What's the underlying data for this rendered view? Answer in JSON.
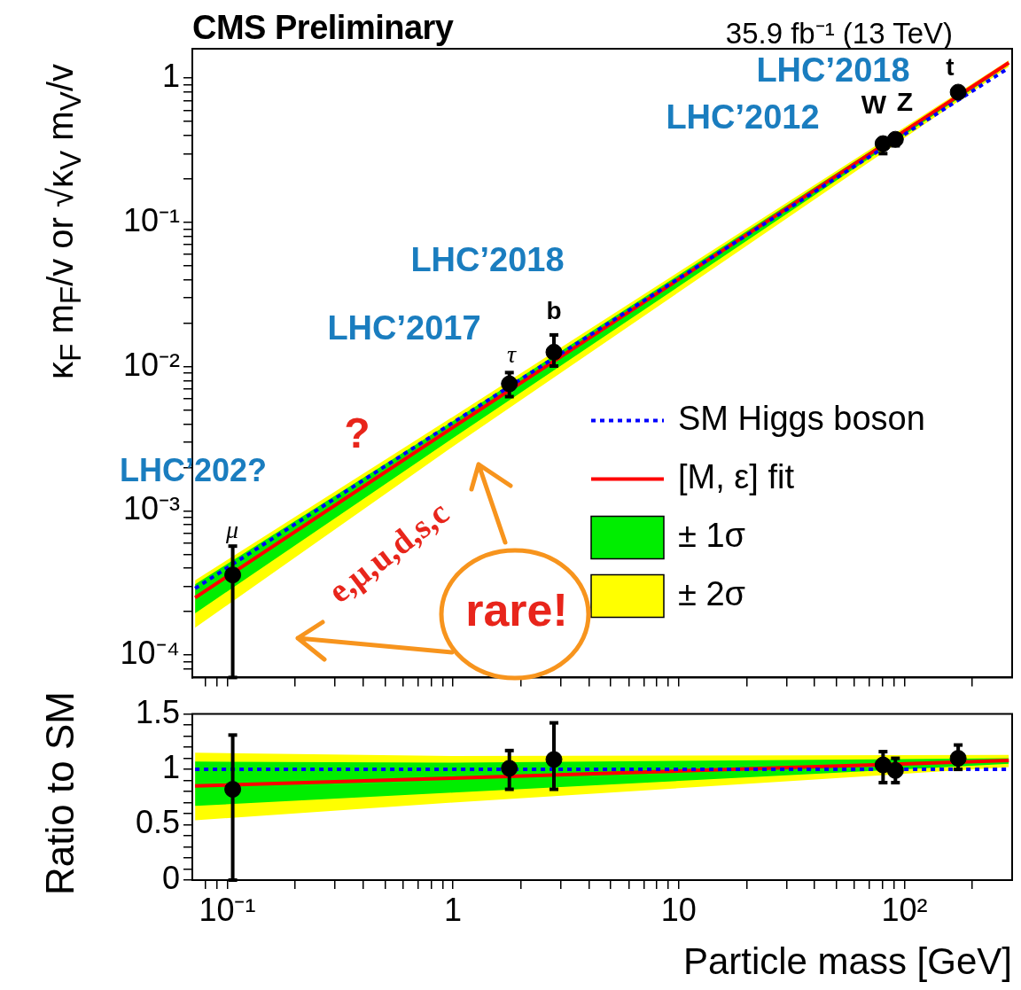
{
  "chart_data": [
    {
      "type": "scatter",
      "title": "CMS Preliminary",
      "subtitle": "35.9 fb⁻¹ (13 TeV)",
      "ylabel": "κ$_{F}$ m$_{F}$/v  or  √κ$_{V}$ m$_{V}$/v",
      "log": "xy",
      "legend": "bottom right",
      "tick_labels": "y",
      "xlim": [
        0.07,
        300
      ],
      "xticks": [
        {
          "value": 0.08,
          "label": null
        },
        {
          "value": 0.09,
          "label": null
        },
        {
          "value": 0.1,
          "label": null
        },
        {
          "value": 0.2,
          "label": null
        },
        {
          "value": 0.3,
          "label": null
        },
        {
          "value": 0.4,
          "label": null
        },
        {
          "value": 0.5,
          "label": null
        },
        {
          "value": 0.6,
          "label": null
        },
        {
          "value": 0.7,
          "label": null
        },
        {
          "value": 0.8,
          "label": null
        },
        {
          "value": 0.9,
          "label": null
        },
        {
          "value": 1,
          "label": null
        },
        {
          "value": 2,
          "label": null
        },
        {
          "value": 3,
          "label": null
        },
        {
          "value": 4,
          "label": null
        },
        {
          "value": 5,
          "label": null
        },
        {
          "value": 6,
          "label": null
        },
        {
          "value": 7,
          "label": null
        },
        {
          "value": 8,
          "label": null
        },
        {
          "value": 9,
          "label": null
        },
        {
          "value": 10,
          "label": null
        },
        {
          "value": 20,
          "label": null
        },
        {
          "value": 30,
          "label": null
        },
        {
          "value": 40,
          "label": null
        },
        {
          "value": 50,
          "label": null
        },
        {
          "value": 60,
          "label": null
        },
        {
          "value": 70,
          "label": null
        },
        {
          "value": 80,
          "label": null
        },
        {
          "value": 90,
          "label": null
        },
        {
          "value": 100,
          "label": null
        },
        {
          "value": 200,
          "label": null
        }
      ],
      "ylim": [
        7e-05,
        1.6
      ],
      "yticks": [
        {
          "value": 8e-05,
          "label": null
        },
        {
          "value": 9e-05,
          "label": null
        },
        {
          "value": 0.0001,
          "label": "10⁻⁴"
        },
        {
          "value": 0.0002,
          "label": null
        },
        {
          "value": 0.0003,
          "label": null
        },
        {
          "value": 0.0004,
          "label": null
        },
        {
          "value": 0.0005,
          "label": null
        },
        {
          "value": 0.0006,
          "label": null
        },
        {
          "value": 0.0007,
          "label": null
        },
        {
          "value": 0.0008,
          "label": null
        },
        {
          "value": 0.0009,
          "label": null
        },
        {
          "value": 0.001,
          "label": "10⁻³"
        },
        {
          "value": 0.002,
          "label": null
        },
        {
          "value": 0.003,
          "label": null
        },
        {
          "value": 0.004,
          "label": null
        },
        {
          "value": 0.005,
          "label": null
        },
        {
          "value": 0.006,
          "label": null
        },
        {
          "value": 0.007,
          "label": null
        },
        {
          "value": 0.008,
          "label": null
        },
        {
          "value": 0.009,
          "label": null
        },
        {
          "value": 0.01,
          "label": "10⁻²"
        },
        {
          "value": 0.02,
          "label": null
        },
        {
          "value": 0.03,
          "label": null
        },
        {
          "value": 0.04,
          "label": null
        },
        {
          "value": 0.05,
          "label": null
        },
        {
          "value": 0.06,
          "label": null
        },
        {
          "value": 0.07,
          "label": null
        },
        {
          "value": 0.08,
          "label": null
        },
        {
          "value": 0.09,
          "label": null
        },
        {
          "value": 0.1,
          "label": "10⁻¹"
        },
        {
          "value": 0.2,
          "label": null
        },
        {
          "value": 0.3,
          "label": null
        },
        {
          "value": 0.4,
          "label": null
        },
        {
          "value": 0.5,
          "label": null
        },
        {
          "value": 0.6,
          "label": null
        },
        {
          "value": 0.7,
          "label": null
        },
        {
          "value": 0.8,
          "label": null
        },
        {
          "value": 0.9,
          "label": null
        },
        1
      ],
      "series": [
        {
          "name": "SM Higgs boson",
          "type": "line",
          "color": "#0000ff",
          "line_style": "dotted",
          "x": [
            0.072,
            1,
            290
          ],
          "values": [
            0.00029,
            0.0041,
            1.18
          ]
        },
        {
          "name": "[M, ε] fit",
          "type": "line",
          "color": "#ff0000",
          "line_style": "solid",
          "x": [
            0.072,
            1,
            290
          ],
          "values": [
            0.00025,
            0.0038,
            1.28
          ]
        },
        {
          "name": "± 1σ",
          "type": "line",
          "color": "#00ee00",
          "x": [
            0.072,
            1,
            290
          ],
          "values": [
            null,
            null,
            null
          ],
          "lower": [
            0.000195,
            0.0032,
            1.24
          ],
          "upper": [
            0.00031,
            0.0042,
            1.3
          ]
        },
        {
          "name": "± 2σ",
          "type": "line",
          "color": "#ffff00",
          "x": [
            0.072,
            1,
            290
          ],
          "values": [
            null,
            null,
            null
          ],
          "lower": [
            0.000155,
            0.0028,
            1.2
          ],
          "upper": [
            0.00033,
            0.0045,
            1.33
          ]
        },
        {
          "type": "scatter",
          "color": "#000000",
          "marker": "circle",
          "x": [
            0.1057,
            1.777,
            2.8,
            80.4,
            91.2,
            173
          ],
          "values": [
            0.00036,
            0.0076,
            0.0126,
            0.352,
            0.377,
            0.8
          ],
          "errors": [
            [
              7e-05,
              0.00057
            ],
            [
              0.0062,
              0.0091
            ],
            [
              0.0101,
              0.0166
            ],
            [
              0.3,
              0.352
            ],
            [
              0.34,
              0.377
            ],
            null
          ]
        }
      ],
      "annotations": [
        "LHC’2018",
        "LHC’2012",
        "LHC’2018",
        "LHC’2017",
        "LHC’202?",
        "?",
        "e,μ,u,d,s,c",
        "rare!",
        "μ",
        "τ",
        "b",
        "W",
        "Z",
        "t"
      ]
    },
    {
      "type": "scatter",
      "xlabel": "Particle mass [GeV]",
      "ylabel": "Ratio to SM",
      "log": "x",
      "xlim": [
        0.07,
        300
      ],
      "xticks": [
        {
          "value": 0.08,
          "label": null
        },
        {
          "value": 0.09,
          "label": null
        },
        {
          "value": 0.1,
          "label": "10⁻¹"
        },
        {
          "value": 0.2,
          "label": null
        },
        {
          "value": 0.3,
          "label": null
        },
        {
          "value": 0.4,
          "label": null
        },
        {
          "value": 0.5,
          "label": null
        },
        {
          "value": 0.6,
          "label": null
        },
        {
          "value": 0.7,
          "label": null
        },
        {
          "value": 0.8,
          "label": null
        },
        {
          "value": 0.9,
          "label": null
        },
        1,
        {
          "value": 2,
          "label": null
        },
        {
          "value": 3,
          "label": null
        },
        {
          "value": 4,
          "label": null
        },
        {
          "value": 5,
          "label": null
        },
        {
          "value": 6,
          "label": null
        },
        {
          "value": 7,
          "label": null
        },
        {
          "value": 8,
          "label": null
        },
        {
          "value": 9,
          "label": null
        },
        10,
        {
          "value": 20,
          "label": null
        },
        {
          "value": 30,
          "label": null
        },
        {
          "value": 40,
          "label": null
        },
        {
          "value": 50,
          "label": null
        },
        {
          "value": 60,
          "label": null
        },
        {
          "value": 70,
          "label": null
        },
        {
          "value": 80,
          "label": null
        },
        {
          "value": 90,
          "label": null
        },
        {
          "value": 100,
          "label": "10²"
        },
        {
          "value": 200,
          "label": null
        }
      ],
      "ylim": [
        0,
        1.5
      ],
      "yticks": [
        0,
        {
          "value": 0.1,
          "label": null
        },
        {
          "value": 0.2,
          "label": null
        },
        {
          "value": 0.3,
          "label": null
        },
        {
          "value": 0.4,
          "label": null
        },
        0.5,
        {
          "value": 0.6,
          "label": null
        },
        {
          "value": 0.7,
          "label": null
        },
        {
          "value": 0.8,
          "label": null
        },
        {
          "value": 0.9,
          "label": null
        },
        1,
        {
          "value": 1.1,
          "label": null
        },
        {
          "value": 1.2,
          "label": null
        },
        {
          "value": 1.3,
          "label": null
        },
        {
          "value": 1.4,
          "label": null
        },
        1.5
      ],
      "series": [
        {
          "type": "line",
          "color": "#0000ff",
          "line_style": "dotted",
          "x": [
            0.072,
            1,
            290
          ],
          "values": [
            1,
            1,
            1
          ]
        },
        {
          "type": "line",
          "color": "#ff0000",
          "line_style": "solid",
          "x": [
            0.072,
            1,
            290
          ],
          "values": [
            0.85,
            0.92,
            1.08
          ]
        },
        {
          "type": "line",
          "color": "#00ee00",
          "x": [
            0.072,
            1,
            290
          ],
          "values": [
            null,
            null,
            null
          ],
          "lower": [
            0.67,
            0.79,
            1.05
          ],
          "upper": [
            1.07,
            1.06,
            1.1
          ]
        },
        {
          "type": "line",
          "color": "#ffff00",
          "x": [
            0.072,
            1,
            290
          ],
          "values": [
            null,
            null,
            null
          ],
          "lower": [
            0.54,
            0.7,
            1.02
          ],
          "upper": [
            1.15,
            1.12,
            1.13
          ]
        },
        {
          "type": "scatter",
          "color": "#000000",
          "marker": "circle",
          "x": [
            0.1057,
            1.777,
            2.8,
            80.4,
            91.2,
            173
          ],
          "values": [
            0.82,
            1.01,
            1.09,
            1.04,
            0.99,
            1.1
          ],
          "errors": [
            [
              0,
              1.31
            ],
            [
              0.82,
              1.17
            ],
            [
              0.82,
              1.42
            ],
            [
              0.88,
              1.16
            ],
            [
              0.88,
              1.1
            ],
            [
              1,
              1.22
            ]
          ]
        }
      ]
    }
  ]
}
